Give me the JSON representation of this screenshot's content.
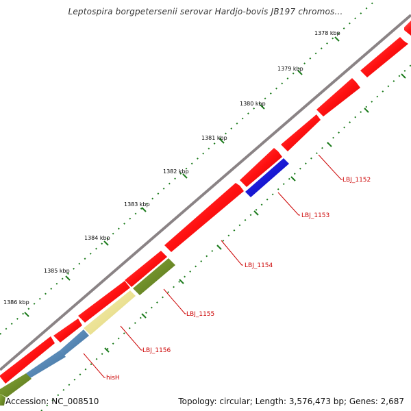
{
  "title": "Leptospira borgpetersenii serovar Hardjo-bovis JB197 chromos...",
  "footer": {
    "accession": "Accession: NC_008510",
    "summary": "Topology: circular; Length: 3,576,473 bp; Genes: 2,687"
  },
  "colors": {
    "backbone": "#8a8385",
    "forward_gene": "#ff1111",
    "reverse_blue_gene": "#0000dd",
    "steel_blue_gene": "#4f86b8",
    "olive_gene": "#6b8e23",
    "pale_yellow_gene": "#f0e68c",
    "tick": "#1a7a1a",
    "label": "#cc0000"
  },
  "ticks": [
    {
      "label": "1378 kbp"
    },
    {
      "label": "1379 kbp"
    },
    {
      "label": "1380 kbp"
    },
    {
      "label": "1381 kbp"
    },
    {
      "label": "1382 kbp"
    },
    {
      "label": "1383 kbp"
    },
    {
      "label": "1384 kbp"
    },
    {
      "label": "1385 kbp"
    },
    {
      "label": "1386 kbp"
    }
  ],
  "gene_labels": [
    {
      "label": "LBJ_1152"
    },
    {
      "label": "LBJ_1153"
    },
    {
      "label": "LBJ_1154"
    },
    {
      "label": "LBJ_1155"
    },
    {
      "label": "LBJ_1156"
    },
    {
      "label": "hisH"
    }
  ]
}
